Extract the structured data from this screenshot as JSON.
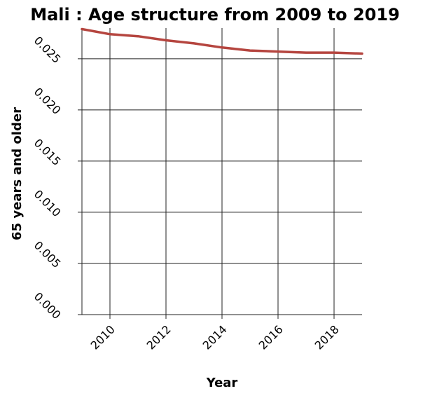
{
  "chart_data": {
    "type": "line",
    "title": "Mali : Age structure from 2009 to 2019",
    "xlabel": "Year",
    "ylabel": "65 years and older",
    "xlim": [
      2009,
      2019
    ],
    "ylim": [
      0,
      0.028
    ],
    "xticks": [
      2010,
      2012,
      2014,
      2016,
      2018
    ],
    "xtick_labels": [
      "2010",
      "2012",
      "2014",
      "2016",
      "2018"
    ],
    "yticks": [
      0,
      0.005,
      0.01,
      0.015,
      0.02,
      0.025
    ],
    "ytick_labels": [
      "0.000",
      "0.005",
      "0.010",
      "0.015",
      "0.020",
      "0.025"
    ],
    "grid": true,
    "series": [
      {
        "color": "#b5453f",
        "x": [
          2009,
          2010,
          2011,
          2012,
          2013,
          2014,
          2015,
          2016,
          2017,
          2018,
          2019
        ],
        "y": [
          0.0279,
          0.0274,
          0.0272,
          0.0268,
          0.0265,
          0.0261,
          0.0258,
          0.0257,
          0.0256,
          0.0256,
          0.0255
        ]
      }
    ]
  }
}
